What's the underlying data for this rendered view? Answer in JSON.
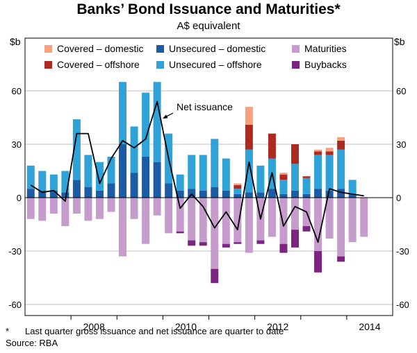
{
  "page": {
    "title": "Banks’ Bond Issuance and Maturities*",
    "subtitle": "A$ equivalent",
    "footnote_marker": "*",
    "footnote_text": "Last quarter gross issuance and net issuance are quarter to date",
    "source": "Source: RBA"
  },
  "chart_data": {
    "type": "bar",
    "combo": "stacked-bar-with-line",
    "unit_left": "$b",
    "unit_right": "$b",
    "yticks": [
      -60,
      -30,
      0,
      30,
      60
    ],
    "ylim": [
      -66,
      90
    ],
    "x_range": [
      "2007 Q1",
      "2014 Q4"
    ],
    "x_years": [
      "2008",
      "2010",
      "2012",
      "2014"
    ],
    "grid": "horizontal",
    "legend_position": "top-inside",
    "categories": [
      "2007 Q1",
      "2007 Q2",
      "2007 Q3",
      "2007 Q4",
      "2008 Q1",
      "2008 Q2",
      "2008 Q3",
      "2008 Q4",
      "2009 Q1",
      "2009 Q2",
      "2009 Q3",
      "2009 Q4",
      "2010 Q1",
      "2010 Q2",
      "2010 Q3",
      "2010 Q4",
      "2011 Q1",
      "2011 Q2",
      "2011 Q3",
      "2011 Q4",
      "2012 Q1",
      "2012 Q2",
      "2012 Q3",
      "2012 Q4",
      "2013 Q1",
      "2013 Q2",
      "2013 Q3",
      "2013 Q4",
      "2014 Q1",
      "2014 Q2"
    ],
    "series": [
      {
        "name": "Unsecured – domestic",
        "key": "unsecured_domestic",
        "color": "#1c5ca5",
        "values": [
          5,
          4,
          4,
          3,
          10,
          6,
          4,
          8,
          30,
          14,
          23,
          20,
          8,
          4,
          5,
          4,
          6,
          4,
          2,
          3,
          3,
          5,
          2,
          4,
          2,
          5,
          4,
          5,
          2,
          0
        ]
      },
      {
        "name": "Unsecured – offshore",
        "key": "unsecured_offshore",
        "color": "#2fa3d8",
        "values": [
          13,
          11,
          9,
          12,
          34,
          18,
          16,
          15,
          35,
          26,
          36,
          45,
          28,
          9,
          19,
          20,
          27,
          18,
          3,
          24,
          15,
          17,
          8,
          15,
          9,
          19,
          20,
          22,
          8,
          0
        ]
      },
      {
        "name": "Covered – offshore",
        "key": "covered_offshore",
        "color": "#ae2a21",
        "values": [
          0,
          0,
          0,
          0,
          0,
          0,
          0,
          0,
          0,
          0,
          0,
          0,
          0,
          0,
          0,
          0,
          0,
          0,
          2,
          14,
          0,
          14,
          3,
          11,
          1,
          2,
          2,
          5,
          0,
          0
        ]
      },
      {
        "name": "Covered – domestic",
        "key": "covered_domestic",
        "color": "#f7a27c",
        "values": [
          0,
          0,
          0,
          0,
          0,
          0,
          0,
          0,
          0,
          0,
          0,
          0,
          0,
          0,
          0,
          0,
          0,
          0,
          1,
          10,
          0,
          0,
          1,
          0,
          0,
          1,
          2,
          2,
          0,
          0
        ]
      },
      {
        "name": "Maturities",
        "key": "maturities",
        "color": "#c69ccd",
        "values": [
          -12,
          -13,
          -9,
          -16,
          -9,
          -13,
          -12,
          -8,
          -33,
          -12,
          -26,
          -10,
          -20,
          -19,
          -24,
          -25,
          -40,
          -26,
          -25,
          -31,
          -24,
          -22,
          -26,
          -18,
          -16,
          -30,
          -23,
          -33,
          -25,
          -22
        ]
      },
      {
        "name": "Buybacks",
        "key": "buybacks",
        "color": "#7b2482",
        "values": [
          0,
          0,
          0,
          0,
          0,
          0,
          0,
          0,
          0,
          0,
          0,
          0,
          0,
          -1,
          -3,
          -2,
          -8,
          -2,
          -1,
          0,
          -2,
          0,
          -5,
          -10,
          -3,
          -12,
          0,
          -3,
          0,
          0
        ]
      }
    ],
    "line": {
      "name": "Net issuance",
      "color": "#000000",
      "values": [
        7,
        3,
        4,
        -2,
        36,
        36,
        8,
        22,
        32,
        28,
        33,
        54,
        22,
        -6,
        2,
        -5,
        -17,
        -8,
        -18,
        20,
        -12,
        14,
        -16,
        -5,
        -8,
        -25,
        5,
        3,
        2,
        1
      ]
    },
    "annotation": {
      "text": "Net issuance"
    }
  }
}
